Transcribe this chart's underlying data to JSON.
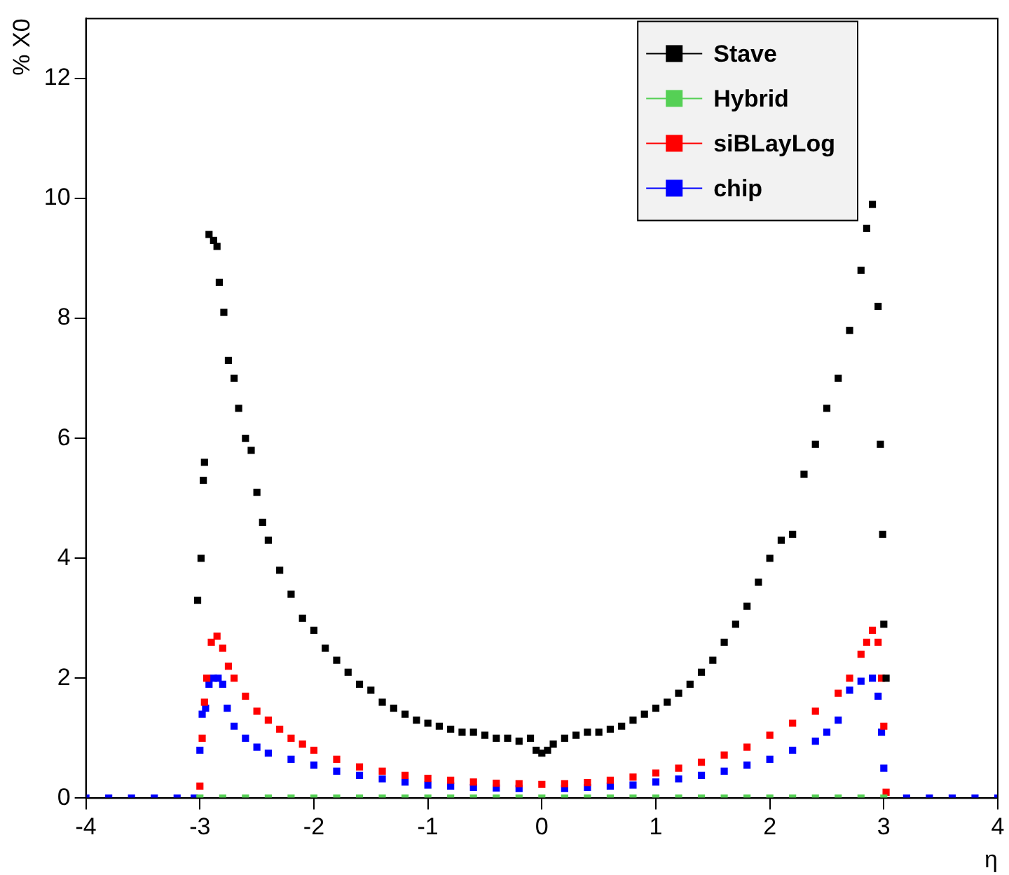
{
  "chart_data": {
    "type": "scatter",
    "xlabel": "η",
    "ylabel": "% X0",
    "xlim": [
      -4,
      4
    ],
    "ylim": [
      0,
      13
    ],
    "xticks": [
      -4,
      -3,
      -2,
      -1,
      0,
      1,
      2,
      3,
      4
    ],
    "yticks": [
      0,
      2,
      4,
      6,
      8,
      10,
      12
    ],
    "grid": false,
    "legend": "top right",
    "marker": "square",
    "series": [
      {
        "name": "Stave",
        "color": "#000000",
        "x": [
          -3.02,
          -2.99,
          -2.97,
          -2.96,
          -2.92,
          -2.88,
          -2.85,
          -2.83,
          -2.79,
          -2.75,
          -2.7,
          -2.66,
          -2.6,
          -2.55,
          -2.5,
          -2.45,
          -2.4,
          -2.3,
          -2.2,
          -2.1,
          -2.0,
          -1.9,
          -1.8,
          -1.7,
          -1.6,
          -1.5,
          -1.4,
          -1.3,
          -1.2,
          -1.1,
          -1.0,
          -0.9,
          -0.8,
          -0.7,
          -0.6,
          -0.5,
          -0.4,
          -0.3,
          -0.2,
          -0.1,
          -0.05,
          0.0,
          0.05,
          0.1,
          0.2,
          0.3,
          0.4,
          0.5,
          0.6,
          0.7,
          0.8,
          0.9,
          1.0,
          1.1,
          1.2,
          1.3,
          1.4,
          1.5,
          1.6,
          1.7,
          1.8,
          1.9,
          2.0,
          2.1,
          2.2,
          2.3,
          2.4,
          2.5,
          2.6,
          2.7,
          2.8,
          2.85,
          2.9,
          2.95,
          2.97,
          2.99,
          3.0,
          3.02
        ],
        "values": [
          3.3,
          4.0,
          5.3,
          5.6,
          9.4,
          9.3,
          9.2,
          8.6,
          8.1,
          7.3,
          7.0,
          6.5,
          6.0,
          5.8,
          5.1,
          4.6,
          4.3,
          3.8,
          3.4,
          3.0,
          2.8,
          2.5,
          2.3,
          2.1,
          1.9,
          1.8,
          1.6,
          1.5,
          1.4,
          1.3,
          1.25,
          1.2,
          1.15,
          1.1,
          1.1,
          1.05,
          1.0,
          1.0,
          0.95,
          1.0,
          0.8,
          0.75,
          0.8,
          0.9,
          1.0,
          1.05,
          1.1,
          1.1,
          1.15,
          1.2,
          1.3,
          1.4,
          1.5,
          1.6,
          1.75,
          1.9,
          2.1,
          2.3,
          2.6,
          2.9,
          3.2,
          3.6,
          4.0,
          4.3,
          4.4,
          5.4,
          5.9,
          6.5,
          7.0,
          7.8,
          8.8,
          9.5,
          9.9,
          8.2,
          5.9,
          4.4,
          2.9,
          2.0
        ]
      },
      {
        "name": "Hybrid",
        "color": "#55d055",
        "x": [
          -3.0,
          -2.8,
          -2.6,
          -2.4,
          -2.2,
          -2.0,
          -1.8,
          -1.6,
          -1.4,
          -1.2,
          -1.0,
          -0.8,
          -0.6,
          -0.4,
          -0.2,
          0.0,
          0.2,
          0.4,
          0.6,
          0.8,
          1.0,
          1.2,
          1.4,
          1.6,
          1.8,
          2.0,
          2.2,
          2.4,
          2.6,
          2.8,
          3.0
        ],
        "values": [
          0,
          0,
          0,
          0,
          0,
          0,
          0,
          0,
          0,
          0,
          0,
          0,
          0,
          0,
          0,
          0,
          0,
          0,
          0,
          0,
          0,
          0,
          0,
          0,
          0,
          0,
          0,
          0,
          0,
          0,
          0
        ]
      },
      {
        "name": "siBLayLog",
        "color": "#ff0000",
        "x": [
          -3.0,
          -2.98,
          -2.96,
          -2.94,
          -2.9,
          -2.85,
          -2.8,
          -2.75,
          -2.7,
          -2.6,
          -2.5,
          -2.4,
          -2.3,
          -2.2,
          -2.1,
          -2.0,
          -1.8,
          -1.6,
          -1.4,
          -1.2,
          -1.0,
          -0.8,
          -0.6,
          -0.4,
          -0.2,
          0.0,
          0.2,
          0.4,
          0.6,
          0.8,
          1.0,
          1.2,
          1.4,
          1.6,
          1.8,
          2.0,
          2.2,
          2.4,
          2.6,
          2.7,
          2.8,
          2.85,
          2.9,
          2.95,
          2.98,
          3.0,
          3.02
        ],
        "values": [
          0.2,
          1.0,
          1.6,
          2.0,
          2.6,
          2.7,
          2.5,
          2.2,
          2.0,
          1.7,
          1.45,
          1.3,
          1.15,
          1.0,
          0.9,
          0.8,
          0.65,
          0.52,
          0.45,
          0.38,
          0.33,
          0.3,
          0.27,
          0.25,
          0.24,
          0.23,
          0.24,
          0.26,
          0.3,
          0.35,
          0.42,
          0.5,
          0.6,
          0.72,
          0.85,
          1.05,
          1.25,
          1.45,
          1.75,
          2.0,
          2.4,
          2.6,
          2.8,
          2.6,
          2.0,
          1.2,
          0.1
        ]
      },
      {
        "name": "chip",
        "color": "#0000ff",
        "x": [
          -4.0,
          -3.8,
          -3.6,
          -3.4,
          -3.2,
          -3.05,
          -3.0,
          -2.98,
          -2.95,
          -2.92,
          -2.88,
          -2.84,
          -2.8,
          -2.76,
          -2.7,
          -2.6,
          -2.5,
          -2.4,
          -2.2,
          -2.0,
          -1.8,
          -1.6,
          -1.4,
          -1.2,
          -1.0,
          -0.8,
          -0.6,
          -0.4,
          -0.2,
          0.0,
          0.2,
          0.4,
          0.6,
          0.8,
          1.0,
          1.2,
          1.4,
          1.6,
          1.8,
          2.0,
          2.2,
          2.4,
          2.5,
          2.6,
          2.7,
          2.8,
          2.9,
          2.95,
          2.98,
          3.0,
          3.02,
          3.2,
          3.4,
          3.6,
          3.8,
          4.0
        ],
        "values": [
          0,
          0,
          0,
          0,
          0,
          0,
          0.8,
          1.4,
          1.5,
          1.9,
          2.0,
          2.0,
          1.9,
          1.5,
          1.2,
          1.0,
          0.85,
          0.75,
          0.65,
          0.55,
          0.45,
          0.38,
          0.32,
          0.27,
          0.22,
          0.2,
          0.18,
          0.17,
          0.16,
          null,
          0.16,
          0.18,
          0.2,
          0.22,
          0.27,
          0.32,
          0.38,
          0.45,
          0.55,
          0.65,
          0.8,
          0.95,
          1.1,
          1.3,
          1.8,
          1.95,
          2.0,
          1.7,
          1.1,
          0.5,
          null,
          0,
          0,
          0,
          0,
          0
        ]
      }
    ]
  }
}
